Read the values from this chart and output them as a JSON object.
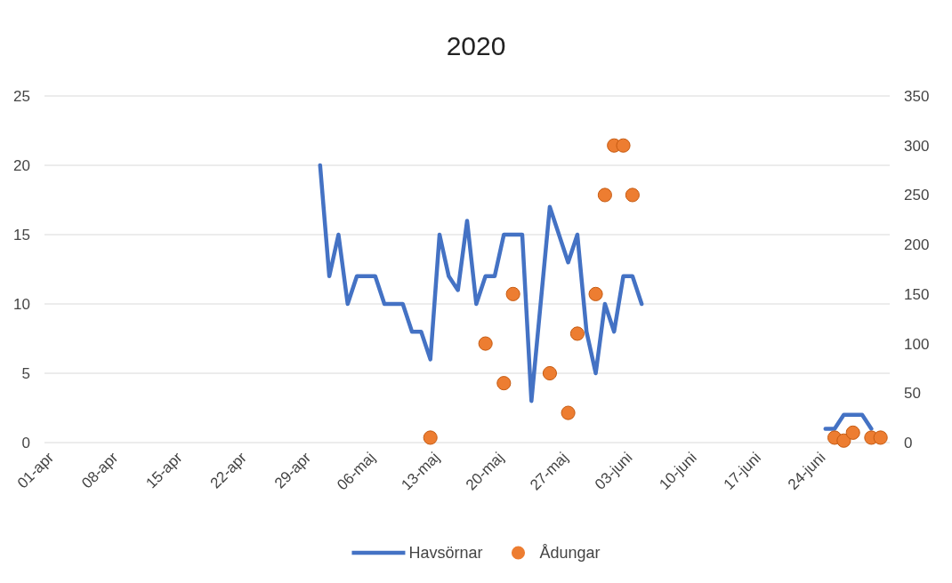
{
  "chart_data": {
    "type": "line",
    "title": "2020",
    "xlim": [
      "--04-01",
      "--07-02"
    ],
    "xticks": [
      {
        "value": "--04-01",
        "label": "01-apr"
      },
      {
        "value": "--04-08",
        "label": "08-apr"
      },
      {
        "value": "--04-15",
        "label": "15-apr"
      },
      {
        "value": "--04-22",
        "label": "22-apr"
      },
      {
        "value": "--04-29",
        "label": "29-apr"
      },
      {
        "value": "--05-06",
        "label": "06-maj"
      },
      {
        "value": "--05-13",
        "label": "13-maj"
      },
      {
        "value": "--05-20",
        "label": "20-maj"
      },
      {
        "value": "--05-27",
        "label": "27-maj"
      },
      {
        "value": "--06-03",
        "label": "03-juni"
      },
      {
        "value": "--06-10",
        "label": "10-juni"
      },
      {
        "value": "--06-17",
        "label": "17-juni"
      },
      {
        "value": "--06-24",
        "label": "24-juni"
      }
    ],
    "ylim": [
      0,
      25
    ],
    "yticks": [
      0,
      5,
      10,
      15,
      20,
      25
    ],
    "y2lim": [
      0,
      350
    ],
    "y2ticks": [
      0,
      50,
      100,
      150,
      200,
      250,
      300,
      350
    ],
    "grid": "y",
    "legend": "bottom",
    "series": [
      {
        "name": "Havsörnar",
        "type": "line",
        "color": "#4472c4",
        "x": [
          "--05-01",
          "--05-02",
          "--05-03",
          "--05-04",
          "--05-05",
          "--05-06",
          "--05-07",
          "--05-08",
          "--05-09",
          "--05-10",
          "--05-11",
          "--05-12",
          "--05-13",
          "--05-14",
          "--05-15",
          "--05-16",
          "--05-17",
          "--05-18",
          "--05-19",
          "--05-20",
          "--05-21",
          "--05-22",
          "--05-23",
          "--05-24",
          "--05-26",
          "--05-28",
          "--05-29",
          "--05-30",
          "--05-31",
          "--06-01",
          "--06-02",
          "--06-03",
          "--06-04",
          "--06-05",
          "--06-15",
          "--06-25",
          "--06-26",
          "--06-27",
          "--06-28",
          "--06-29",
          "--06-30"
        ],
        "values": [
          20,
          12,
          15,
          10,
          12,
          12,
          12,
          10,
          10,
          10,
          8,
          8,
          6,
          15,
          12,
          11,
          16,
          10,
          12,
          12,
          15,
          15,
          15,
          3,
          17,
          13,
          15,
          8,
          5,
          10,
          8,
          12,
          12,
          10,
          null,
          1,
          1,
          2,
          2,
          2,
          1
        ]
      },
      {
        "name": "Ådungar",
        "type": "scatter",
        "axis": "y2",
        "marker": "circle",
        "color": "#ed7d31",
        "x": [
          "--05-13",
          "--05-19",
          "--05-21",
          "--05-22",
          "--05-26",
          "--05-28",
          "--05-29",
          "--05-31",
          "--06-01",
          "--06-02",
          "--06-03",
          "--06-04",
          "--06-26",
          "--06-27",
          "--06-28",
          "--06-30",
          "--07-01"
        ],
        "values": [
          5,
          100,
          60,
          150,
          70,
          30,
          110,
          150,
          250,
          300,
          300,
          250,
          5,
          2,
          10,
          5,
          5
        ]
      }
    ]
  }
}
